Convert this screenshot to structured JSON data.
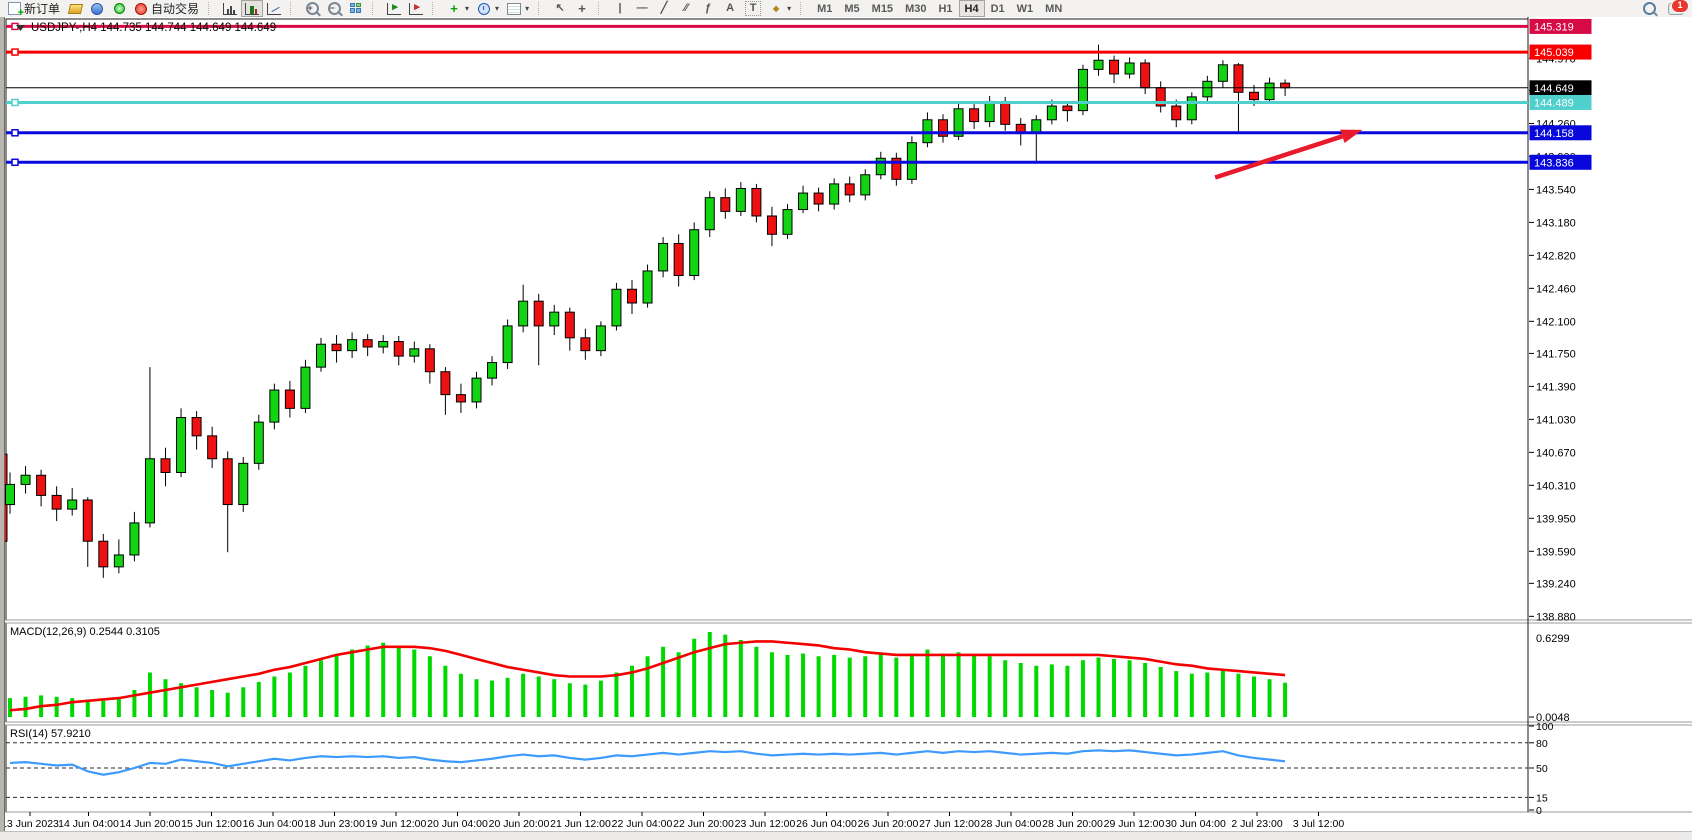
{
  "toolbar": {
    "new_order_label": "新订单",
    "auto_trading_label": "自动交易",
    "glyphs": {
      "zoom_in": "+",
      "zoom_out": "−",
      "autoscroll": "▸",
      "chartshift": "▸",
      "indicators_plus": "+",
      "cursor": "↖",
      "crosshair": "+",
      "vline": "|",
      "hline": "—",
      "trendline": "╱",
      "channel": "∕∕",
      "fibonacci": "ƒ",
      "text": "A",
      "label": "T",
      "arrows": "◆",
      "dropdown": "▾"
    },
    "timeframes": [
      "M1",
      "M5",
      "M15",
      "M30",
      "H1",
      "H4",
      "D1",
      "W1",
      "MN"
    ],
    "active_timeframe": "H4",
    "notifications_badge": "1"
  },
  "colors": {
    "bull": "#12d412",
    "bear": "#ef1111",
    "wick": "#000000",
    "macd_hist": "#00d800",
    "macd_signal": "#f40000",
    "rsi_line": "#3d9aff",
    "line_red_dark": "#d80a46",
    "line_red": "#f80000",
    "line_cyan": "#4fd0cc",
    "line_blue": "#0808dd",
    "line_black": "#000000",
    "arrow": "#e81a2b"
  },
  "chart_data": {
    "type": "candlestick",
    "title": "USDJPY-,H4  144.735 144.744 144.649 144.649",
    "symbol": "USDJPY-",
    "timeframe": "H4",
    "ohlc_display": {
      "open": "144.735",
      "high": "144.744",
      "low": "144.649",
      "close": "144.649"
    },
    "current_price": "144.649",
    "hlines": [
      {
        "price": 145.319,
        "label": "145.319",
        "color": "line_red_dark",
        "width": 3
      },
      {
        "price": 145.039,
        "label": "145.039",
        "color": "line_red",
        "width": 3
      },
      {
        "price": 144.649,
        "label": "144.649",
        "color": "line_black",
        "width": 1,
        "current": true
      },
      {
        "price": 144.489,
        "label": "144.489",
        "color": "line_cyan",
        "width": 3
      },
      {
        "price": 144.158,
        "label": "144.158",
        "color": "line_blue",
        "width": 3
      },
      {
        "price": 143.836,
        "label": "143.836",
        "color": "line_blue",
        "width": 3
      }
    ],
    "arrow_annotation": {
      "from_price": 143.67,
      "from_bar": 77.5,
      "to_price": 144.17,
      "to_bar": 86.6
    },
    "price_axis_ticks": [
      "144.970",
      "144.620",
      "144.260",
      "143.900",
      "143.540",
      "143.180",
      "142.820",
      "142.460",
      "142.100",
      "141.750",
      "141.390",
      "141.030",
      "140.670",
      "140.310",
      "139.950",
      "139.590",
      "139.240",
      "138.880"
    ],
    "time_labels": [
      "13 Jun 2023",
      "14 Jun 04:00",
      "14 Jun 20:00",
      "15 Jun 12:00",
      "16 Jun 04:00",
      "18 Jun 23:00",
      "19 Jun 12:00",
      "20 Jun 04:00",
      "20 Jun 20:00",
      "21 Jun 12:00",
      "22 Jun 04:00",
      "22 Jun 20:00",
      "23 Jun 12:00",
      "26 Jun 04:00",
      "26 Jun 20:00",
      "27 Jun 12:00",
      "28 Jun 04:00",
      "28 Jun 20:00",
      "29 Jun 12:00",
      "30 Jun 04:00",
      "2 Jul 23:00",
      "3 Jul 12:00"
    ],
    "left_partial_bar": {
      "o": 140.65,
      "h": 140.7,
      "l": 139.62,
      "c": 139.7
    },
    "ohlc": [
      [
        140.1,
        140.45,
        140.0,
        140.32
      ],
      [
        140.32,
        140.52,
        140.22,
        140.42
      ],
      [
        140.42,
        140.48,
        140.08,
        140.2
      ],
      [
        140.2,
        140.3,
        139.92,
        140.05
      ],
      [
        140.05,
        140.28,
        139.98,
        140.15
      ],
      [
        140.15,
        140.18,
        139.42,
        139.7
      ],
      [
        139.7,
        139.78,
        139.3,
        139.42
      ],
      [
        139.42,
        139.72,
        139.35,
        139.55
      ],
      [
        139.55,
        140.02,
        139.48,
        139.9
      ],
      [
        139.9,
        141.6,
        139.85,
        140.6
      ],
      [
        140.6,
        140.72,
        140.3,
        140.45
      ],
      [
        140.45,
        141.15,
        140.4,
        141.05
      ],
      [
        141.05,
        141.12,
        140.7,
        140.85
      ],
      [
        140.85,
        140.95,
        140.5,
        140.6
      ],
      [
        140.6,
        140.68,
        139.58,
        140.1
      ],
      [
        140.1,
        140.62,
        140.02,
        140.55
      ],
      [
        140.55,
        141.08,
        140.48,
        141.0
      ],
      [
        141.0,
        141.42,
        140.92,
        141.35
      ],
      [
        141.35,
        141.45,
        141.05,
        141.15
      ],
      [
        141.15,
        141.68,
        141.1,
        141.6
      ],
      [
        141.6,
        141.92,
        141.55,
        141.85
      ],
      [
        141.85,
        141.95,
        141.65,
        141.78
      ],
      [
        141.78,
        141.98,
        141.7,
        141.9
      ],
      [
        141.9,
        141.96,
        141.72,
        141.82
      ],
      [
        141.82,
        141.95,
        141.75,
        141.88
      ],
      [
        141.88,
        141.94,
        141.62,
        141.72
      ],
      [
        141.72,
        141.88,
        141.65,
        141.8
      ],
      [
        141.8,
        141.85,
        141.42,
        141.55
      ],
      [
        141.55,
        141.6,
        141.08,
        141.3
      ],
      [
        141.3,
        141.42,
        141.1,
        141.22
      ],
      [
        141.22,
        141.55,
        141.15,
        141.48
      ],
      [
        141.48,
        141.72,
        141.4,
        141.65
      ],
      [
        141.65,
        142.12,
        141.58,
        142.05
      ],
      [
        142.05,
        142.5,
        141.98,
        142.32
      ],
      [
        142.32,
        142.4,
        141.62,
        142.05
      ],
      [
        142.05,
        142.28,
        141.95,
        142.2
      ],
      [
        142.2,
        142.25,
        141.78,
        141.92
      ],
      [
        141.92,
        142.02,
        141.68,
        141.78
      ],
      [
        141.78,
        142.1,
        141.72,
        142.05
      ],
      [
        142.05,
        142.52,
        142.0,
        142.45
      ],
      [
        142.45,
        142.55,
        142.18,
        142.3
      ],
      [
        142.3,
        142.72,
        142.25,
        142.65
      ],
      [
        142.65,
        143.02,
        142.58,
        142.95
      ],
      [
        142.95,
        143.05,
        142.48,
        142.6
      ],
      [
        142.6,
        143.18,
        142.55,
        143.1
      ],
      [
        143.1,
        143.52,
        143.02,
        143.45
      ],
      [
        143.45,
        143.55,
        143.22,
        143.3
      ],
      [
        143.3,
        143.62,
        143.25,
        143.55
      ],
      [
        143.55,
        143.6,
        143.18,
        143.25
      ],
      [
        143.25,
        143.35,
        142.92,
        143.05
      ],
      [
        143.05,
        143.38,
        143.0,
        143.32
      ],
      [
        143.32,
        143.58,
        143.28,
        143.5
      ],
      [
        143.5,
        143.56,
        143.3,
        143.38
      ],
      [
        143.38,
        143.66,
        143.32,
        143.6
      ],
      [
        143.6,
        143.68,
        143.4,
        143.48
      ],
      [
        143.48,
        143.76,
        143.42,
        143.7
      ],
      [
        143.7,
        143.95,
        143.65,
        143.88
      ],
      [
        143.88,
        143.94,
        143.58,
        143.65
      ],
      [
        143.65,
        144.12,
        143.6,
        144.05
      ],
      [
        144.05,
        144.38,
        144.0,
        144.3
      ],
      [
        144.3,
        144.36,
        144.05,
        144.12
      ],
      [
        144.12,
        144.5,
        144.08,
        144.42
      ],
      [
        144.42,
        144.48,
        144.2,
        144.28
      ],
      [
        144.28,
        144.56,
        144.22,
        144.5
      ],
      [
        144.5,
        144.55,
        144.18,
        144.25
      ],
      [
        144.25,
        144.32,
        144.02,
        144.15
      ],
      [
        144.15,
        144.35,
        143.84,
        144.3
      ],
      [
        144.3,
        144.52,
        144.25,
        144.45
      ],
      [
        144.45,
        144.5,
        144.28,
        144.4
      ],
      [
        144.4,
        144.9,
        144.35,
        144.85
      ],
      [
        144.85,
        145.12,
        144.78,
        144.95
      ],
      [
        144.95,
        145.0,
        144.7,
        144.8
      ],
      [
        144.8,
        144.98,
        144.75,
        144.92
      ],
      [
        144.92,
        144.96,
        144.58,
        144.65
      ],
      [
        144.65,
        144.72,
        144.38,
        144.45
      ],
      [
        144.45,
        144.52,
        144.22,
        144.3
      ],
      [
        144.3,
        144.6,
        144.25,
        144.55
      ],
      [
        144.55,
        144.78,
        144.5,
        144.72
      ],
      [
        144.72,
        144.95,
        144.65,
        144.9
      ],
      [
        144.9,
        144.92,
        144.16,
        144.6
      ],
      [
        144.6,
        144.68,
        144.45,
        144.52
      ],
      [
        144.52,
        144.76,
        144.48,
        144.7
      ],
      [
        144.7,
        144.74,
        144.56,
        144.649
      ]
    ],
    "macd": {
      "label": "MACD(12,26,9) 0.2544 0.3105",
      "main_value": "0.2544",
      "signal_value": "0.3105",
      "scale_top": "0.6299",
      "scale_bottom": "0.0048",
      "hist": [
        0.14,
        0.15,
        0.16,
        0.15,
        0.14,
        0.13,
        0.12,
        0.14,
        0.2,
        0.33,
        0.28,
        0.25,
        0.22,
        0.2,
        0.18,
        0.22,
        0.26,
        0.3,
        0.33,
        0.38,
        0.42,
        0.46,
        0.5,
        0.53,
        0.55,
        0.53,
        0.5,
        0.45,
        0.38,
        0.32,
        0.28,
        0.27,
        0.29,
        0.32,
        0.3,
        0.28,
        0.25,
        0.24,
        0.27,
        0.33,
        0.38,
        0.45,
        0.52,
        0.48,
        0.58,
        0.63,
        0.61,
        0.57,
        0.52,
        0.48,
        0.46,
        0.47,
        0.45,
        0.46,
        0.44,
        0.45,
        0.47,
        0.44,
        0.47,
        0.5,
        0.47,
        0.48,
        0.46,
        0.45,
        0.42,
        0.4,
        0.38,
        0.39,
        0.38,
        0.42,
        0.44,
        0.43,
        0.42,
        0.4,
        0.37,
        0.34,
        0.32,
        0.33,
        0.35,
        0.32,
        0.3,
        0.28,
        0.254
      ],
      "signal": [
        0.05,
        0.06,
        0.08,
        0.09,
        0.11,
        0.12,
        0.13,
        0.14,
        0.16,
        0.18,
        0.2,
        0.22,
        0.24,
        0.26,
        0.28,
        0.3,
        0.32,
        0.35,
        0.37,
        0.4,
        0.43,
        0.46,
        0.48,
        0.5,
        0.52,
        0.52,
        0.52,
        0.51,
        0.49,
        0.46,
        0.43,
        0.4,
        0.37,
        0.35,
        0.33,
        0.31,
        0.3,
        0.3,
        0.3,
        0.31,
        0.33,
        0.36,
        0.4,
        0.44,
        0.48,
        0.51,
        0.54,
        0.55,
        0.56,
        0.56,
        0.55,
        0.54,
        0.53,
        0.51,
        0.5,
        0.48,
        0.47,
        0.46,
        0.46,
        0.46,
        0.46,
        0.46,
        0.46,
        0.46,
        0.46,
        0.46,
        0.46,
        0.46,
        0.46,
        0.46,
        0.46,
        0.45,
        0.44,
        0.43,
        0.41,
        0.39,
        0.38,
        0.36,
        0.35,
        0.34,
        0.33,
        0.32,
        0.3105
      ]
    },
    "rsi": {
      "label": "RSI(14) 57.9210",
      "value": "57.9210",
      "scale_labels": [
        "100",
        "80",
        "50",
        "15",
        "0"
      ],
      "dashed_levels": [
        80,
        50,
        15
      ],
      "series": [
        56,
        57,
        55,
        53,
        54,
        46,
        42,
        45,
        50,
        56,
        55,
        60,
        58,
        56,
        52,
        55,
        58,
        61,
        59,
        62,
        64,
        63,
        64,
        63,
        64,
        62,
        63,
        60,
        58,
        57,
        59,
        61,
        64,
        66,
        64,
        65,
        62,
        60,
        62,
        65,
        64,
        66,
        68,
        66,
        68,
        70,
        69,
        70,
        67,
        65,
        66,
        67,
        66,
        67,
        66,
        67,
        68,
        66,
        68,
        70,
        68,
        70,
        69,
        70,
        68,
        66,
        67,
        68,
        67,
        70,
        71,
        70,
        71,
        69,
        67,
        65,
        66,
        68,
        70,
        65,
        62,
        60,
        57.92
      ]
    }
  }
}
